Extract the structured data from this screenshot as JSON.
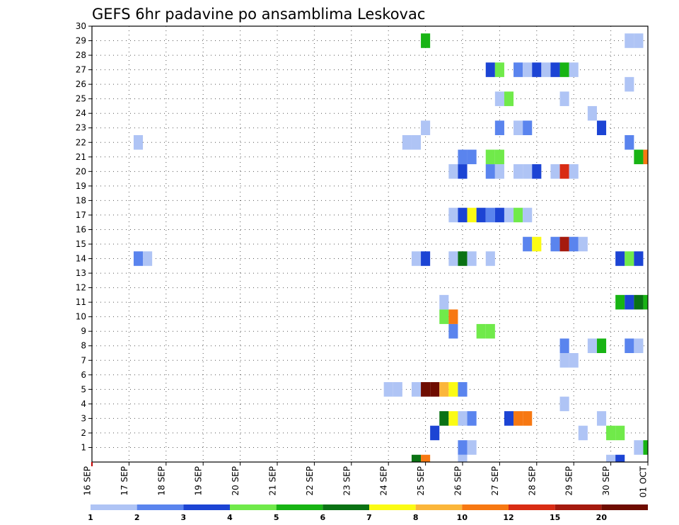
{
  "chart_data": {
    "type": "heatmap",
    "title": "GEFS 6hr padavine po ansamblima Leskovac",
    "y_ticks": [
      "1",
      "2",
      "3",
      "4",
      "5",
      "6",
      "7",
      "8",
      "9",
      "10",
      "11",
      "12",
      "13",
      "14",
      "15",
      "16",
      "17",
      "18",
      "19",
      "20",
      "21",
      "22",
      "23",
      "24",
      "25",
      "26",
      "27",
      "28",
      "29",
      "30"
    ],
    "ylim": [
      0,
      30
    ],
    "x_ticks": [
      "16 SEP",
      "17 SEP",
      "18 SEP",
      "19 SEP",
      "20 SEP",
      "21 SEP",
      "22 SEP",
      "23 SEP",
      "24 SEP",
      "25 SEP",
      "26 SEP",
      "27 SEP",
      "28 SEP",
      "29 SEP",
      "30 SEP",
      "01 OCT"
    ],
    "x_steps_per_day": 4,
    "x_steps_total": 60,
    "grid": true,
    "legend": {
      "placement": "bottom",
      "labels": [
        "1",
        "2",
        "3",
        "4",
        "5",
        "6",
        "7",
        "8",
        "10",
        "12",
        "15",
        "20"
      ],
      "colors": [
        "#afc4f5",
        "#5a84ee",
        "#1c44d4",
        "#70ea4a",
        "#18b414",
        "#0a7214",
        "#fbfb14",
        "#fbb63a",
        "#f77812",
        "#d92c14",
        "#a51a0e",
        "#6e0c00"
      ]
    },
    "cells": [
      {
        "m": 0,
        "s": 35,
        "c": 6
      },
      {
        "m": 0,
        "s": 36,
        "c": 9
      },
      {
        "m": 0,
        "s": 40,
        "c": 1
      },
      {
        "m": 0,
        "s": 56,
        "c": 1
      },
      {
        "m": 0,
        "s": 57,
        "c": 3
      },
      {
        "m": 1,
        "s": 40,
        "c": 2
      },
      {
        "m": 1,
        "s": 41,
        "c": 1
      },
      {
        "m": 1,
        "s": 59,
        "c": 1
      },
      {
        "m": 1,
        "s": 60,
        "c": 5
      },
      {
        "m": 2,
        "s": 37,
        "c": 3
      },
      {
        "m": 2,
        "s": 53,
        "c": 1
      },
      {
        "m": 2,
        "s": 56,
        "c": 4
      },
      {
        "m": 2,
        "s": 57,
        "c": 4
      },
      {
        "m": 3,
        "s": 38,
        "c": 6
      },
      {
        "m": 3,
        "s": 39,
        "c": 7
      },
      {
        "m": 3,
        "s": 40,
        "c": 1
      },
      {
        "m": 3,
        "s": 41,
        "c": 2
      },
      {
        "m": 3,
        "s": 45,
        "c": 3
      },
      {
        "m": 3,
        "s": 46,
        "c": 9
      },
      {
        "m": 3,
        "s": 47,
        "c": 9
      },
      {
        "m": 3,
        "s": 55,
        "c": 1
      },
      {
        "m": 4,
        "s": 51,
        "c": 1
      },
      {
        "m": 5,
        "s": 32,
        "c": 1
      },
      {
        "m": 5,
        "s": 33,
        "c": 1
      },
      {
        "m": 5,
        "s": 35,
        "c": 1
      },
      {
        "m": 5,
        "s": 36,
        "c": 12
      },
      {
        "m": 5,
        "s": 37,
        "c": 12
      },
      {
        "m": 5,
        "s": 38,
        "c": 8
      },
      {
        "m": 5,
        "s": 39,
        "c": 7
      },
      {
        "m": 5,
        "s": 40,
        "c": 2
      },
      {
        "m": 7,
        "s": 51,
        "c": 1
      },
      {
        "m": 7,
        "s": 52,
        "c": 1
      },
      {
        "m": 8,
        "s": 51,
        "c": 2
      },
      {
        "m": 8,
        "s": 54,
        "c": 1
      },
      {
        "m": 8,
        "s": 55,
        "c": 5
      },
      {
        "m": 8,
        "s": 58,
        "c": 2
      },
      {
        "m": 8,
        "s": 59,
        "c": 1
      },
      {
        "m": 9,
        "s": 39,
        "c": 2
      },
      {
        "m": 9,
        "s": 42,
        "c": 4
      },
      {
        "m": 9,
        "s": 43,
        "c": 4
      },
      {
        "m": 10,
        "s": 38,
        "c": 4
      },
      {
        "m": 10,
        "s": 39,
        "c": 9
      },
      {
        "m": 11,
        "s": 38,
        "c": 1
      },
      {
        "m": 11,
        "s": 57,
        "c": 5
      },
      {
        "m": 11,
        "s": 58,
        "c": 3
      },
      {
        "m": 11,
        "s": 59,
        "c": 6
      },
      {
        "m": 11,
        "s": 60,
        "c": 5
      },
      {
        "m": 14,
        "s": 5,
        "c": 2
      },
      {
        "m": 14,
        "s": 6,
        "c": 1
      },
      {
        "m": 14,
        "s": 35,
        "c": 1
      },
      {
        "m": 14,
        "s": 36,
        "c": 3
      },
      {
        "m": 14,
        "s": 39,
        "c": 1
      },
      {
        "m": 14,
        "s": 40,
        "c": 6
      },
      {
        "m": 14,
        "s": 41,
        "c": 1
      },
      {
        "m": 14,
        "s": 43,
        "c": 1
      },
      {
        "m": 14,
        "s": 57,
        "c": 3
      },
      {
        "m": 14,
        "s": 58,
        "c": 4
      },
      {
        "m": 14,
        "s": 59,
        "c": 3
      },
      {
        "m": 15,
        "s": 47,
        "c": 2
      },
      {
        "m": 15,
        "s": 48,
        "c": 7
      },
      {
        "m": 15,
        "s": 50,
        "c": 2
      },
      {
        "m": 15,
        "s": 51,
        "c": 11
      },
      {
        "m": 15,
        "s": 52,
        "c": 2
      },
      {
        "m": 15,
        "s": 53,
        "c": 1
      },
      {
        "m": 17,
        "s": 39,
        "c": 1
      },
      {
        "m": 17,
        "s": 40,
        "c": 3
      },
      {
        "m": 17,
        "s": 41,
        "c": 7
      },
      {
        "m": 17,
        "s": 42,
        "c": 3
      },
      {
        "m": 17,
        "s": 43,
        "c": 2
      },
      {
        "m": 17,
        "s": 44,
        "c": 3
      },
      {
        "m": 17,
        "s": 45,
        "c": 1
      },
      {
        "m": 17,
        "s": 46,
        "c": 4
      },
      {
        "m": 17,
        "s": 47,
        "c": 1
      },
      {
        "m": 20,
        "s": 39,
        "c": 1
      },
      {
        "m": 20,
        "s": 40,
        "c": 3
      },
      {
        "m": 20,
        "s": 43,
        "c": 2
      },
      {
        "m": 20,
        "s": 44,
        "c": 1
      },
      {
        "m": 20,
        "s": 46,
        "c": 1
      },
      {
        "m": 20,
        "s": 47,
        "c": 1
      },
      {
        "m": 20,
        "s": 48,
        "c": 3
      },
      {
        "m": 20,
        "s": 50,
        "c": 1
      },
      {
        "m": 20,
        "s": 51,
        "c": 10
      },
      {
        "m": 20,
        "s": 52,
        "c": 1
      },
      {
        "m": 21,
        "s": 40,
        "c": 2
      },
      {
        "m": 21,
        "s": 41,
        "c": 2
      },
      {
        "m": 21,
        "s": 43,
        "c": 4
      },
      {
        "m": 21,
        "s": 44,
        "c": 4
      },
      {
        "m": 21,
        "s": 59,
        "c": 5
      },
      {
        "m": 21,
        "s": 60,
        "c": 9
      },
      {
        "m": 22,
        "s": 5,
        "c": 1
      },
      {
        "m": 22,
        "s": 34,
        "c": 1
      },
      {
        "m": 22,
        "s": 35,
        "c": 1
      },
      {
        "m": 22,
        "s": 58,
        "c": 2
      },
      {
        "m": 23,
        "s": 36,
        "c": 1
      },
      {
        "m": 23,
        "s": 44,
        "c": 2
      },
      {
        "m": 23,
        "s": 46,
        "c": 1
      },
      {
        "m": 23,
        "s": 47,
        "c": 2
      },
      {
        "m": 23,
        "s": 55,
        "c": 3
      },
      {
        "m": 24,
        "s": 54,
        "c": 1
      },
      {
        "m": 25,
        "s": 44,
        "c": 1
      },
      {
        "m": 25,
        "s": 45,
        "c": 4
      },
      {
        "m": 25,
        "s": 51,
        "c": 1
      },
      {
        "m": 26,
        "s": 58,
        "c": 1
      },
      {
        "m": 27,
        "s": 43,
        "c": 3
      },
      {
        "m": 27,
        "s": 44,
        "c": 4
      },
      {
        "m": 27,
        "s": 46,
        "c": 2
      },
      {
        "m": 27,
        "s": 47,
        "c": 1
      },
      {
        "m": 27,
        "s": 48,
        "c": 3
      },
      {
        "m": 27,
        "s": 49,
        "c": 1
      },
      {
        "m": 27,
        "s": 50,
        "c": 3
      },
      {
        "m": 27,
        "s": 51,
        "c": 5
      },
      {
        "m": 27,
        "s": 52,
        "c": 1
      },
      {
        "m": 29,
        "s": 36,
        "c": 5
      },
      {
        "m": 29,
        "s": 58,
        "c": 1
      },
      {
        "m": 29,
        "s": 59,
        "c": 1
      }
    ]
  }
}
